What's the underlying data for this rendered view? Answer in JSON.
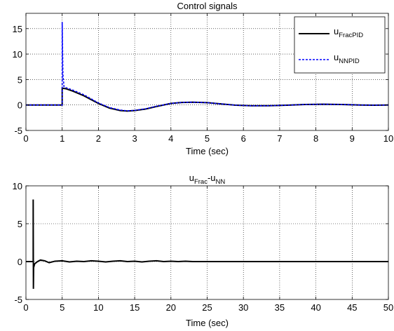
{
  "chart_data": [
    {
      "type": "line",
      "title": "Control signals",
      "xlabel": "Time (sec)",
      "ylabel": "",
      "xlim": [
        0,
        10
      ],
      "ylim": [
        -5,
        18
      ],
      "xticks": [
        0,
        1,
        2,
        3,
        4,
        5,
        6,
        7,
        8,
        9,
        10
      ],
      "yticks": [
        -5,
        0,
        5,
        10,
        15
      ],
      "grid": true,
      "legend_position": "top-right",
      "series": [
        {
          "name": "u",
          "name_subscript": "FracPID",
          "color": "#000000",
          "dash": "solid",
          "x": [
            0,
            0.98,
            1.0,
            1.0,
            1.1,
            1.3,
            1.6,
            2.0,
            2.3,
            2.6,
            2.8,
            3.0,
            3.3,
            3.6,
            4.0,
            4.3,
            4.6,
            5.0,
            5.4,
            5.8,
            6.2,
            6.7,
            7.2,
            7.7,
            8.2,
            8.7,
            9.2,
            9.6,
            10
          ],
          "y": [
            0,
            0,
            0,
            3.3,
            3.2,
            2.7,
            1.8,
            0.3,
            -0.6,
            -1.1,
            -1.2,
            -1.1,
            -0.8,
            -0.3,
            0.3,
            0.5,
            0.55,
            0.45,
            0.2,
            -0.05,
            -0.15,
            -0.15,
            -0.05,
            0.1,
            0.15,
            0.1,
            0.0,
            -0.05,
            0
          ]
        },
        {
          "name": "u",
          "name_subscript": "NNPID",
          "color": "#0000ff",
          "dash": "dashed",
          "x": [
            0,
            0.98,
            1.0,
            1.0,
            1.02,
            1.05,
            1.1,
            1.3,
            1.6,
            2.0,
            2.3,
            2.6,
            2.8,
            3.0,
            3.3,
            3.6,
            4.0,
            4.3,
            4.6,
            5.0,
            5.4,
            5.8,
            6.2,
            6.7,
            7.2,
            7.7,
            8.2,
            8.7,
            9.2,
            9.6,
            10
          ],
          "y": [
            0,
            0,
            0,
            16.3,
            6.0,
            3.6,
            3.4,
            2.9,
            2.0,
            0.4,
            -0.5,
            -1.0,
            -1.15,
            -1.05,
            -0.75,
            -0.25,
            0.3,
            0.5,
            0.55,
            0.45,
            0.2,
            -0.05,
            -0.15,
            -0.15,
            -0.05,
            0.1,
            0.15,
            0.1,
            0.0,
            -0.05,
            0
          ]
        }
      ]
    },
    {
      "type": "line",
      "title": "u",
      "title_sub1": "Frac",
      "title_mid": "-u",
      "title_sub2": "NN",
      "xlabel": "Time (sec)",
      "ylabel": "",
      "xlim": [
        0,
        50
      ],
      "ylim": [
        -5,
        10
      ],
      "xticks": [
        0,
        5,
        10,
        15,
        20,
        25,
        30,
        35,
        40,
        45,
        50
      ],
      "yticks": [
        -5,
        0,
        5,
        10
      ],
      "grid": true,
      "series": [
        {
          "name": "",
          "color": "#000000",
          "dash": "solid",
          "x": [
            0,
            0.95,
            1.0,
            1.0,
            1.03,
            1.06,
            1.2,
            1.6,
            2.0,
            2.6,
            3.2,
            4.0,
            5.0,
            6.0,
            7.0,
            8.0,
            9.0,
            10.0,
            11.0,
            12.0,
            13.0,
            14.0,
            15.0,
            16.0,
            17.0,
            18.0,
            19.0,
            20.0,
            21.0,
            22.0,
            23.0,
            24.0,
            25.0,
            30.0,
            40.0,
            50.0
          ],
          "y": [
            0,
            0,
            0,
            8.2,
            -3.6,
            -0.8,
            -0.3,
            0.0,
            0.2,
            0.1,
            -0.15,
            0.05,
            0.1,
            -0.05,
            0.05,
            0.0,
            0.1,
            0.05,
            -0.05,
            0.05,
            0.1,
            0.0,
            0.05,
            -0.05,
            0.05,
            0.1,
            0.0,
            0.05,
            0.0,
            0.05,
            0.0,
            0.0,
            0.0,
            0.0,
            0.0,
            0.0
          ]
        }
      ]
    }
  ]
}
